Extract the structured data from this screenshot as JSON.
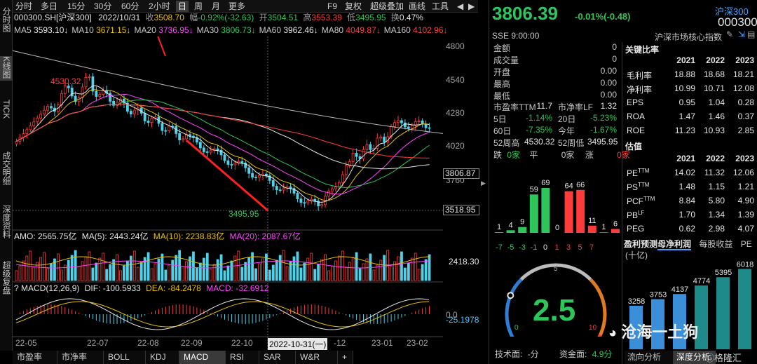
{
  "sidebar": {
    "items": [
      "分时图",
      "K线图",
      "TICK",
      "成交明细",
      "深度资料",
      "超级复盘"
    ]
  },
  "toolbar": {
    "periods": [
      "分时",
      "多日",
      "15分",
      "30分",
      "60分",
      "2小时",
      "日",
      "周",
      "月",
      "更多"
    ],
    "active": "日",
    "right_items": [
      "F9",
      "复权",
      "超级叠加",
      "画线",
      "工具"
    ]
  },
  "quote_line": {
    "code": "000300.SH[沪深300]",
    "date": "2022/10/31",
    "close_label": "收",
    "close": "3508.70",
    "chg_label": "幅",
    "chg": "-0.92%(-32.63)",
    "open_label": "开",
    "open": "3504.51",
    "high_label": "高",
    "high": "3553.39",
    "low_label": "低",
    "low": "3495.95",
    "turn_label": "换",
    "turn": "0.47%"
  },
  "ma_line": [
    {
      "label": "MA5",
      "value": "3593.10↓",
      "color": "#e8e8e8"
    },
    {
      "label": "MA10",
      "value": "3671.15↓",
      "color": "#e8c000"
    },
    {
      "label": "MA20",
      "value": "3736.95↓",
      "color": "#ff44ff"
    },
    {
      "label": "MA30",
      "value": "3806.73↓",
      "color": "#2ec55a"
    },
    {
      "label": "MA60",
      "value": "3962.46↓",
      "color": "#e6e6e6"
    },
    {
      "label": "MA80",
      "value": "4049.87↓",
      "color": "#ff3c3c"
    },
    {
      "label": "MA160",
      "value": "4102.96↓",
      "color": "#ff3c3c"
    }
  ],
  "price_axis": [
    "4800",
    "4540",
    "4280",
    "4020",
    "3760"
  ],
  "price_boxes": [
    "3806.87",
    "3518.95"
  ],
  "annotations": {
    "high_mark": "4530.32",
    "low_mark": "3495.95"
  },
  "amo_line": {
    "amo": "AMO: 2565.75亿",
    "ma5": "MA(5): 2443.24亿",
    "ma10": "MA(10): 2238.83亿",
    "ma20": "MA(20): 2087.67亿"
  },
  "vol_axis": [
    "2418.30"
  ],
  "macd_line": {
    "label": "MACD(12,26,9)",
    "dif": "DIF: -100.5933",
    "dea": "DEA: -84.2478",
    "macd": "MACD: -32.6912"
  },
  "macd_axis": [
    "0.0",
    "-25.1978"
  ],
  "date_axis": [
    "22-05",
    "22-07",
    "22-08",
    "22-09",
    "22-10",
    "2022-10-31(一)",
    "-12",
    "23-01",
    "23-02"
  ],
  "bottom_tabs": [
    "市盈率",
    "市净率",
    "BOLL",
    "KDJ",
    "MACD",
    "RSI",
    "SAR",
    "W&R",
    "+"
  ],
  "bottom_active": "MACD",
  "right": {
    "price": "3806.39",
    "change": "-0.01%(-0.48)",
    "index_name": "沪深300",
    "index_code": "000300",
    "exchange": "SSE  9:00:00",
    "subtitle": "沪深市场核心指数",
    "stats": [
      {
        "label": "金额",
        "value": "0"
      },
      {
        "label": "成交量",
        "value": "0"
      },
      {
        "label": "开盘",
        "value": "0.00"
      },
      {
        "label": "最高",
        "value": "0.00"
      },
      {
        "label": "最低",
        "value": "0.00"
      }
    ],
    "valuation": [
      {
        "l1": "市盈率TTM",
        "v1": "11.7",
        "l2": "市净率LF",
        "v2": "1.32"
      },
      {
        "l1": "5日",
        "v1": "-1.14%",
        "l2": "20日",
        "v2": "-5.23%"
      },
      {
        "l1": "60日",
        "v1": "-7.35%",
        "l2": "今年",
        "v2": "-1.67%"
      },
      {
        "l1": "52周高",
        "v1": "4530.32",
        "l2": "52周低",
        "v2": "3495.95"
      }
    ],
    "breadth": {
      "fall_label": "跌",
      "fall": "0家",
      "flat_label": "平",
      "flat": "0家",
      "rise_label": "涨",
      "rise": "0家"
    },
    "dist_bars": {
      "values": [
        1,
        4,
        9,
        59,
        69,
        0,
        64,
        66,
        11,
        1,
        6
      ],
      "colors": [
        "#2ec55a",
        "#2ec55a",
        "#2ec55a",
        "#2ec55a",
        "#2ec55a",
        "#888888",
        "#ff3c3c",
        "#ff3c3c",
        "#ff3c3c",
        "#ff3c3c",
        "#ff3c3c"
      ],
      "axis": [
        "-7",
        "-5",
        "-3",
        "-1",
        "0",
        "1",
        "3",
        "5",
        "7"
      ]
    },
    "gauge": {
      "value": "2.5",
      "min": "0",
      "mid": "5",
      "max": "10",
      "level": 0.25
    },
    "gauge_footer": {
      "tech_label": "技术面:",
      "tech": "-分",
      "fund_label": "资金面:",
      "fund": "4.9分"
    },
    "key_ratios": {
      "title": "关键比率",
      "years": [
        "2021",
        "2022",
        "2023"
      ],
      "rows": [
        {
          "name": "毛利率",
          "vals": [
            "18.88",
            "18.68",
            "18.21"
          ]
        },
        {
          "name": "净利率",
          "vals": [
            "10.99",
            "10.71",
            "12.08"
          ]
        },
        {
          "name": "EPS",
          "vals": [
            "0.95",
            "1.04",
            "0.28"
          ]
        },
        {
          "name": "ROA",
          "vals": [
            "1.47",
            "1.46",
            "0.37"
          ]
        },
        {
          "name": "ROE",
          "vals": [
            "11.23",
            "10.93",
            "2.85"
          ]
        }
      ]
    },
    "estimates": {
      "title": "估值",
      "years": [
        "2021",
        "2022",
        "2023"
      ],
      "rows": [
        {
          "name": "PETTM",
          "vals": [
            "14.02",
            "11.32",
            "12.06"
          ]
        },
        {
          "name": "PSTTM",
          "vals": [
            "1.48",
            "1.15",
            "1.21"
          ]
        },
        {
          "name": "PCFTTM",
          "vals": [
            "8.84",
            "5.80",
            "4.90"
          ]
        },
        {
          "name": "PBLF",
          "vals": [
            "1.70",
            "1.34",
            "1.39"
          ]
        },
        {
          "name": "PEG",
          "vals": [
            "0.62",
            "2.98",
            "4.07"
          ]
        }
      ]
    },
    "profit_tabs": [
      "盈利预测",
      "母净利润",
      "每股收益",
      "PE"
    ],
    "profit_unit": "(十亿)",
    "profit_bars": {
      "values": [
        3258,
        3753,
        4137,
        4774,
        5395,
        6018
      ]
    },
    "right_bottom_tabs": [
      "流向分析",
      "深度分析"
    ],
    "watermark": "沧海一土狗",
    "logo": "格隆汇"
  }
}
